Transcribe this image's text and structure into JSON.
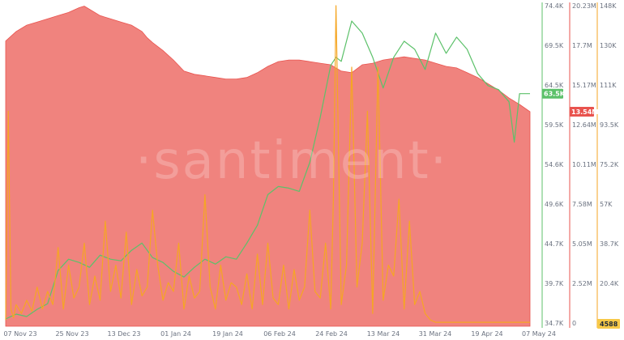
{
  "chart_data": {
    "type": "line",
    "title": "",
    "watermark": "·santiment·",
    "x_tick_labels": [
      "07 Nov 23",
      "25 Nov 23",
      "13 Dec 23",
      "01 Jan 24",
      "19 Jan 24",
      "06 Feb 24",
      "24 Feb 24",
      "13 Mar 24",
      "31 Mar 24",
      "19 Apr 24",
      "07 May 24"
    ],
    "axes": {
      "price": {
        "ticks": [
          "74.4K",
          "69.5K",
          "64.5K",
          "59.5K",
          "54.6K",
          "49.6K",
          "44.7K",
          "39.7K",
          "34.7K"
        ],
        "range": [
          34700,
          74400
        ],
        "color": "#5cc16a",
        "current_label": "63.5K"
      },
      "red_metric": {
        "ticks": [
          "20.23M",
          "17.7M",
          "15.17M",
          "12.64M",
          "10.11M",
          "7.58M",
          "5.05M",
          "2.52M",
          "0"
        ],
        "range": [
          0,
          20230000
        ],
        "color": "#e9534e",
        "current_label": "13.54M"
      },
      "orange_metric": {
        "ticks": [
          "148K",
          "130K",
          "111K",
          "93.5K",
          "75.2K",
          "57K",
          "38.7K",
          "20.4K",
          "2181"
        ],
        "range": [
          2181,
          148000
        ],
        "color": "#f5a623",
        "current_label": "4588"
      }
    },
    "series": [
      {
        "axis": "red_metric",
        "style": "filled-area",
        "color": "#f0837e",
        "x": [
          0,
          0.02,
          0.04,
          0.06,
          0.08,
          0.1,
          0.12,
          0.14,
          0.15,
          0.16,
          0.18,
          0.2,
          0.22,
          0.24,
          0.26,
          0.27,
          0.28,
          0.3,
          0.32,
          0.34,
          0.36,
          0.38,
          0.4,
          0.42,
          0.44,
          0.46,
          0.48,
          0.5,
          0.52,
          0.54,
          0.56,
          0.58,
          0.6,
          0.62,
          0.64,
          0.66,
          0.68,
          0.7,
          0.72,
          0.74,
          0.76,
          0.78,
          0.8,
          0.82,
          0.84,
          0.86,
          0.88,
          0.9,
          0.92,
          0.94,
          0.96,
          0.98,
          1.0
        ],
        "values": [
          18.0,
          18.6,
          19.0,
          19.2,
          19.4,
          19.6,
          19.8,
          20.1,
          20.2,
          20.0,
          19.6,
          19.4,
          19.2,
          19.0,
          18.6,
          18.2,
          17.9,
          17.4,
          16.8,
          16.1,
          15.9,
          15.8,
          15.7,
          15.6,
          15.6,
          15.7,
          16.0,
          16.4,
          16.7,
          16.8,
          16.8,
          16.7,
          16.6,
          16.5,
          16.1,
          16.0,
          16.5,
          16.6,
          16.8,
          16.9,
          17.0,
          16.9,
          16.8,
          16.6,
          16.4,
          16.3,
          16.0,
          15.7,
          15.3,
          14.9,
          14.4,
          14.0,
          13.54
        ]
      },
      {
        "axis": "price",
        "style": "line",
        "color": "#5cc16a",
        "x": [
          0,
          0.02,
          0.04,
          0.06,
          0.08,
          0.1,
          0.12,
          0.14,
          0.16,
          0.18,
          0.2,
          0.22,
          0.24,
          0.26,
          0.28,
          0.3,
          0.32,
          0.34,
          0.36,
          0.38,
          0.4,
          0.42,
          0.44,
          0.46,
          0.48,
          0.5,
          0.52,
          0.54,
          0.56,
          0.58,
          0.6,
          0.62,
          0.63,
          0.64,
          0.66,
          0.68,
          0.7,
          0.72,
          0.74,
          0.76,
          0.78,
          0.8,
          0.82,
          0.84,
          0.86,
          0.88,
          0.9,
          0.92,
          0.94,
          0.96,
          0.97,
          0.98,
          1.0
        ],
        "values": [
          35.6,
          36.2,
          35.9,
          36.8,
          37.5,
          41.6,
          43.0,
          42.6,
          42.0,
          43.5,
          43.0,
          42.8,
          44.1,
          45.0,
          43.2,
          42.6,
          41.5,
          40.8,
          42.0,
          43.0,
          42.4,
          43.3,
          43.0,
          45.0,
          47.2,
          51.0,
          52.0,
          51.8,
          51.4,
          55.0,
          60.6,
          67.0,
          68.0,
          67.5,
          72.5,
          71.0,
          68.0,
          64.2,
          68.0,
          70.0,
          69.0,
          66.5,
          71.0,
          68.5,
          70.5,
          69.0,
          66.0,
          64.5,
          64.0,
          62.5,
          57.5,
          63.5,
          63.5
        ]
      },
      {
        "axis": "orange_metric",
        "style": "line",
        "color": "#f5a623",
        "x": [
          0,
          0.005,
          0.01,
          0.015,
          0.02,
          0.03,
          0.04,
          0.05,
          0.06,
          0.07,
          0.08,
          0.09,
          0.1,
          0.11,
          0.12,
          0.13,
          0.14,
          0.15,
          0.16,
          0.17,
          0.18,
          0.19,
          0.2,
          0.21,
          0.22,
          0.23,
          0.24,
          0.25,
          0.26,
          0.27,
          0.28,
          0.29,
          0.3,
          0.31,
          0.32,
          0.33,
          0.34,
          0.35,
          0.36,
          0.37,
          0.38,
          0.39,
          0.4,
          0.41,
          0.42,
          0.43,
          0.44,
          0.45,
          0.46,
          0.47,
          0.48,
          0.49,
          0.5,
          0.51,
          0.52,
          0.53,
          0.54,
          0.55,
          0.56,
          0.57,
          0.58,
          0.59,
          0.6,
          0.61,
          0.62,
          0.625,
          0.63,
          0.64,
          0.65,
          0.66,
          0.67,
          0.68,
          0.69,
          0.7,
          0.71,
          0.72,
          0.73,
          0.74,
          0.75,
          0.76,
          0.77,
          0.78,
          0.79,
          0.8,
          0.81,
          0.82,
          0.83,
          1.0
        ],
        "values": [
          5,
          100,
          10,
          6,
          12,
          8,
          14,
          9,
          20,
          10,
          18,
          12,
          38,
          10,
          30,
          15,
          20,
          40,
          12,
          25,
          14,
          50,
          18,
          30,
          15,
          45,
          12,
          28,
          16,
          20,
          55,
          30,
          14,
          22,
          18,
          40,
          10,
          25,
          15,
          18,
          62,
          20,
          10,
          30,
          14,
          22,
          20,
          12,
          26,
          10,
          35,
          12,
          40,
          15,
          12,
          30,
          10,
          28,
          14,
          20,
          55,
          18,
          15,
          40,
          10,
          60,
          148,
          12,
          30,
          120,
          20,
          40,
          100,
          8,
          120,
          14,
          30,
          25,
          60,
          10,
          50,
          12,
          18,
          8,
          5,
          4,
          4,
          4
        ]
      }
    ],
    "grid": false,
    "legend": "none"
  }
}
